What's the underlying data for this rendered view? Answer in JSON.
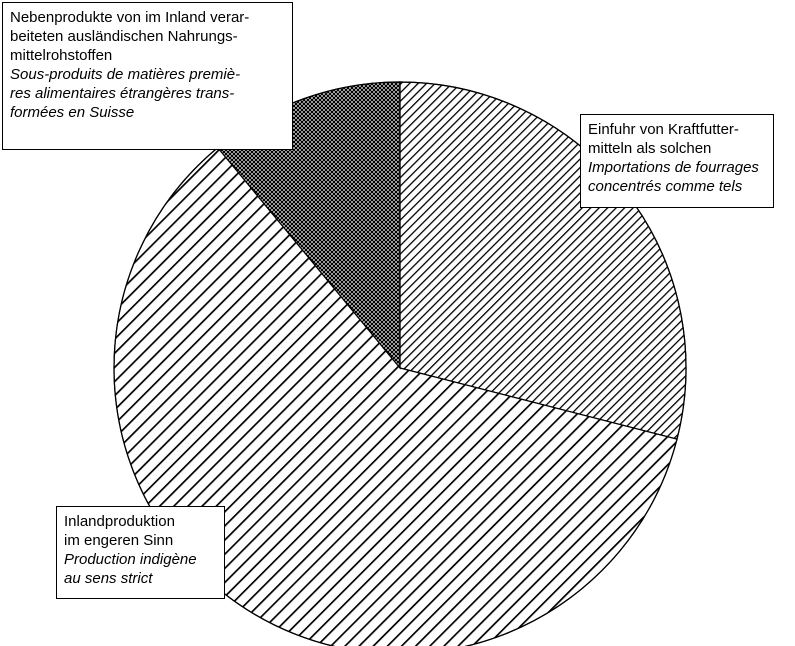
{
  "chart_data": {
    "type": "pie",
    "title": "",
    "start_angle_deg": 0,
    "direction": "clockwise",
    "slices": [
      {
        "key": "imports",
        "label_de": "Einfuhr von Kraftfutter-mitteln als solchen",
        "label_fr": "Importations de fourrages concentrés comme tels",
        "value": 29,
        "pattern": "dense-diagonal-hatch"
      },
      {
        "key": "domestic",
        "label_de": "Inlandproduktion im engeren Sinn",
        "label_fr": "Production indigène au sens strict",
        "value": 60,
        "pattern": "wide-diagonal-stripes"
      },
      {
        "key": "byproducts",
        "label_de": "Nebenprodukte von im Inland verar-beiteten ausländischen Nahrungs-mittelrohstoffen",
        "label_fr": "Sous-produits de matières premiè-res alimentaires étrangères trans-formées en Suisse",
        "value": 11,
        "pattern": "crosshatch"
      }
    ]
  },
  "labels": {
    "byproducts": {
      "de_lines": [
        "Nebenprodukte von im Inland verar-",
        "beiteten ausländischen Nahrungs-",
        "mittelrohstoffen"
      ],
      "fr_lines": [
        "Sous-produits de matières premiè-",
        "res  alimentaires étrangères trans-",
        "formées en Suisse"
      ]
    },
    "imports": {
      "de_lines": [
        "Einfuhr von Kraftfutter-",
        "mitteln als solchen"
      ],
      "fr_lines": [
        "Importations de fourrages",
        "concentrés comme tels"
      ]
    },
    "domestic": {
      "de_lines": [
        "Inlandproduktion",
        "im engeren Sinn"
      ],
      "fr_lines": [
        "Production indigène",
        "au sens strict"
      ]
    }
  },
  "colors": {
    "ink": "#000000",
    "paper": "#ffffff"
  }
}
